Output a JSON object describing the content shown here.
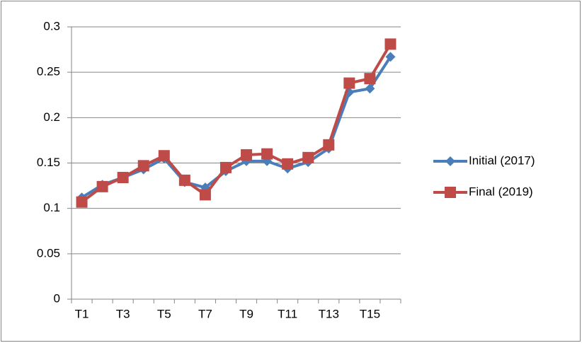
{
  "chart_data": {
    "type": "line",
    "categories": [
      "T1",
      null,
      "T3",
      null,
      "T5",
      null,
      "T7",
      null,
      "T9",
      null,
      "T11",
      null,
      "T13",
      null,
      "T15",
      null
    ],
    "series": [
      {
        "name": "Initial (2017)",
        "color": "#4a7ebb",
        "marker": "diamond",
        "values": [
          0.112,
          0.126,
          0.134,
          0.143,
          0.155,
          0.129,
          0.123,
          0.141,
          0.152,
          0.152,
          0.144,
          0.151,
          0.166,
          0.228,
          0.232,
          0.267
        ]
      },
      {
        "name": "Final (2019)",
        "color": "#be4b48",
        "marker": "square",
        "values": [
          0.107,
          0.124,
          0.134,
          0.147,
          0.158,
          0.131,
          0.115,
          0.145,
          0.159,
          0.16,
          0.149,
          0.156,
          0.17,
          0.238,
          0.243,
          0.281
        ]
      }
    ],
    "ylim": [
      0,
      0.3
    ],
    "yticks": [
      0,
      0.05,
      0.1,
      0.15,
      0.2,
      0.25,
      0.3
    ],
    "grid": true,
    "legend": "right"
  }
}
